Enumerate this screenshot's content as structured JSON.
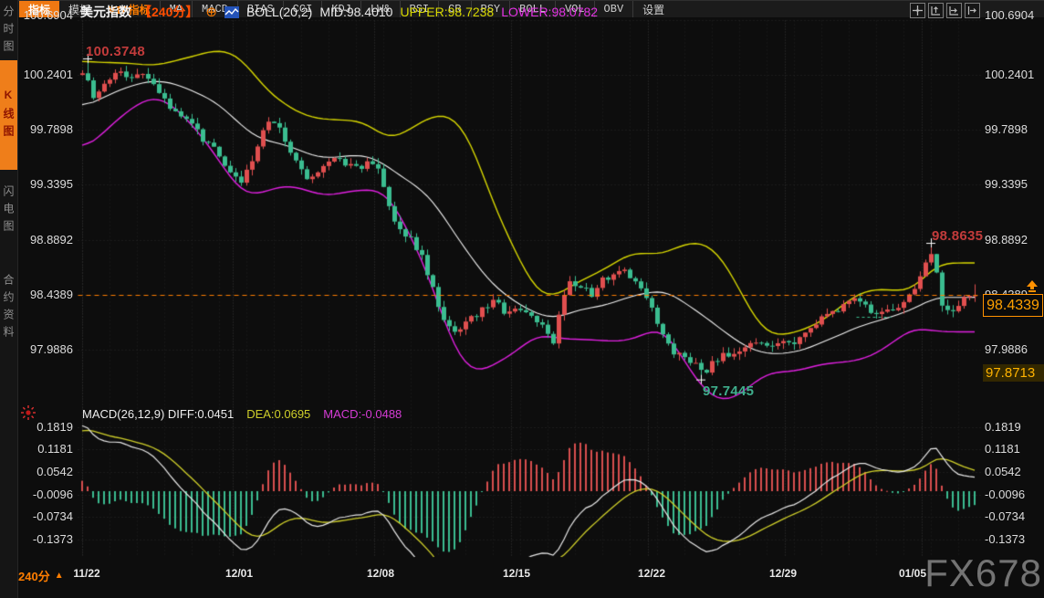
{
  "header": {
    "symbol": "美元指数",
    "period_tag": "【240分】",
    "boll_label": "BOLL(20,2)",
    "mid_text": "MID:98.4010",
    "upper_text": "UPPER:98.7238",
    "lower_text": "LOWER:98.0782",
    "tool_icons": [
      "pan-icon",
      "axis-zoom-in-icon",
      "axis-zoom-out-icon",
      "export-icon"
    ]
  },
  "sidebar": {
    "tabs": [
      {
        "label": "分时图",
        "active": false
      },
      {
        "label": "K线图",
        "active": true
      },
      {
        "label": "闪电图",
        "active": false
      },
      {
        "label": "合约资料",
        "active": false
      }
    ]
  },
  "chart_data": [
    {
      "type": "candlestick",
      "title": "美元指数 240分",
      "indicator": {
        "name": "BOLL",
        "period": 20,
        "dev": 2,
        "mid": 98.401,
        "upper": 98.7238,
        "lower": 98.0782
      },
      "y_ticks": [
        100.6904,
        100.2401,
        99.7898,
        99.3395,
        98.8892,
        98.4389,
        97.9886
      ],
      "x_dates": [
        "11/22",
        "12/01",
        "12/08",
        "12/15",
        "12/22",
        "12/29",
        "01/05"
      ],
      "current_price": 98.4339,
      "secondary_level": 97.8713,
      "price_line_level": 98.4389,
      "annotations": [
        {
          "text": "100.3748",
          "type": "high",
          "color": "#c23b3b"
        },
        {
          "text": "98.8635",
          "type": "high",
          "color": "#c23b3b"
        },
        {
          "text": "97.7445",
          "type": "low",
          "color": "#3fae8c"
        }
      ],
      "colors": {
        "up": "#e04f4f",
        "down": "#3bbd90",
        "upper_band": "#d8d800",
        "mid_band": "#f2f2f2",
        "lower_band": "#e020e0",
        "price_line": "#ff7e00"
      },
      "price_path": [
        [
          85,
          100.18
        ],
        [
          92,
          100.28
        ],
        [
          100,
          100.07
        ],
        [
          110,
          100.1
        ],
        [
          122,
          100.22
        ],
        [
          133,
          100.27
        ],
        [
          145,
          100.2
        ],
        [
          158,
          100.24
        ],
        [
          170,
          100.12
        ],
        [
          182,
          100.0
        ],
        [
          196,
          99.9
        ],
        [
          210,
          99.86
        ],
        [
          222,
          99.72
        ],
        [
          235,
          99.62
        ],
        [
          248,
          99.5
        ],
        [
          262,
          99.34
        ],
        [
          272,
          99.46
        ],
        [
          283,
          99.7
        ],
        [
          295,
          99.85
        ],
        [
          305,
          99.8
        ],
        [
          316,
          99.6
        ],
        [
          328,
          99.48
        ],
        [
          340,
          99.38
        ],
        [
          352,
          99.46
        ],
        [
          364,
          99.6
        ],
        [
          377,
          99.52
        ],
        [
          390,
          99.47
        ],
        [
          402,
          99.52
        ],
        [
          415,
          99.48
        ],
        [
          428,
          99.1
        ],
        [
          440,
          98.95
        ],
        [
          452,
          98.88
        ],
        [
          465,
          98.7
        ],
        [
          478,
          98.38
        ],
        [
          490,
          98.18
        ],
        [
          503,
          98.15
        ],
        [
          516,
          98.25
        ],
        [
          530,
          98.33
        ],
        [
          543,
          98.38
        ],
        [
          556,
          98.28
        ],
        [
          570,
          98.33
        ],
        [
          583,
          98.27
        ],
        [
          596,
          98.18
        ],
        [
          605,
          98.02
        ],
        [
          614,
          98.35
        ],
        [
          624,
          98.55
        ],
        [
          636,
          98.5
        ],
        [
          648,
          98.45
        ],
        [
          660,
          98.55
        ],
        [
          672,
          98.62
        ],
        [
          684,
          98.63
        ],
        [
          696,
          98.52
        ],
        [
          708,
          98.42
        ],
        [
          720,
          98.22
        ],
        [
          733,
          98.0
        ],
        [
          746,
          97.93
        ],
        [
          758,
          97.88
        ],
        [
          770,
          97.8
        ],
        [
          781,
          97.88
        ],
        [
          793,
          97.96
        ],
        [
          806,
          97.92
        ],
        [
          818,
          98.0
        ],
        [
          830,
          98.06
        ],
        [
          843,
          98.02
        ],
        [
          856,
          98.08
        ],
        [
          868,
          98.04
        ],
        [
          880,
          98.14
        ],
        [
          893,
          98.2
        ],
        [
          906,
          98.28
        ],
        [
          919,
          98.33
        ],
        [
          932,
          98.37
        ],
        [
          944,
          98.4
        ],
        [
          956,
          98.27
        ],
        [
          968,
          98.28
        ],
        [
          980,
          98.33
        ],
        [
          992,
          98.4
        ],
        [
          1003,
          98.5
        ],
        [
          1012,
          98.68
        ],
        [
          1019,
          98.78
        ],
        [
          1026,
          98.6
        ],
        [
          1033,
          98.33
        ],
        [
          1041,
          98.28
        ],
        [
          1050,
          98.36
        ],
        [
          1058,
          98.42
        ],
        [
          1068,
          98.43
        ]
      ]
    },
    {
      "type": "macd",
      "label": "MACD(26,12,9)",
      "params": {
        "fast": 12,
        "slow": 26,
        "signal": 9
      },
      "diff": 0.0451,
      "dea": 0.0695,
      "macd": -0.0488,
      "y_ticks": [
        0.1819,
        0.1181,
        0.0542,
        -0.0096,
        -0.0734,
        -0.1373
      ],
      "colors": {
        "diff_line": "#e8e8e8",
        "dea_line": "#cfcf2a",
        "hist_pos": "#d94f4f",
        "hist_neg": "#3bbd90"
      }
    }
  ],
  "macd_header": {
    "label_diff": "MACD(26,12,9) DIFF:0.0451",
    "dea": "DEA:0.0695",
    "macd": "MACD:-0.0488"
  },
  "price_labels": {
    "current": "98.4339",
    "secondary": "97.8713"
  },
  "dates_row": {
    "period": "240分",
    "arrow": "▲"
  },
  "toolbar": {
    "items": [
      {
        "label": "指标",
        "active": true
      },
      {
        "label": "模板"
      },
      {
        "label": "VIP指标",
        "vip": true
      },
      {
        "label": "MA"
      },
      {
        "label": "MACD"
      },
      {
        "label": "BIAS"
      },
      {
        "label": "CCI"
      },
      {
        "label": "KDJ"
      },
      {
        "label": "LW&"
      },
      {
        "label": "RSI"
      },
      {
        "label": "CR"
      },
      {
        "label": "PSY"
      },
      {
        "label": "BOLL"
      },
      {
        "label": "VOL"
      },
      {
        "label": "OBV"
      },
      {
        "label": "设置"
      }
    ]
  },
  "watermark": "FX678"
}
